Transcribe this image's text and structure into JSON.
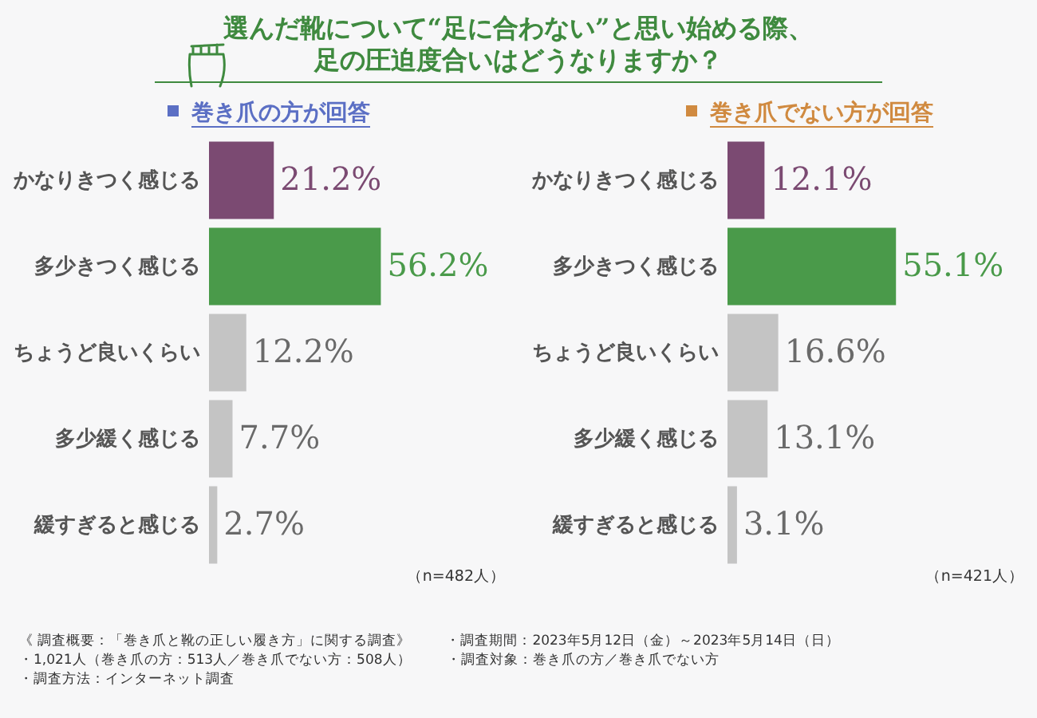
{
  "chart_data": [
    {
      "type": "bar",
      "orientation": "horizontal",
      "title": "選んだ靴について“足に合わない”と思い始める際、足の圧迫度合いはどうなりますか？",
      "subtitle": "巻き爪の方が回答",
      "categories": [
        "かなりきつく感じる",
        "多少きつく感じる",
        "ちょうど良いくらい",
        "多少緩く感じる",
        "緩すぎると感じる"
      ],
      "values": [
        21.2,
        56.2,
        12.2,
        7.7,
        2.7
      ],
      "colors": [
        "#7b4a72",
        "#4a9a4a",
        "#c4c4c4",
        "#c4c4c4",
        "#c4c4c4"
      ],
      "value_labels": [
        "21.2%",
        "56.2%",
        "12.2%",
        "7.7%",
        "2.7%"
      ],
      "tick_labels": false,
      "annotations": [
        "（n=482人）"
      ]
    },
    {
      "type": "bar",
      "orientation": "horizontal",
      "subtitle": "巻き爪でない方が回答",
      "categories": [
        "かなりきつく感じる",
        "多少きつく感じる",
        "ちょうど良いくらい",
        "多少緩く感じる",
        "緩すぎると感じる"
      ],
      "values": [
        12.1,
        55.1,
        16.6,
        13.1,
        3.1
      ],
      "colors": [
        "#7b4a72",
        "#4a9a4a",
        "#c4c4c4",
        "#c4c4c4",
        "#c4c4c4"
      ],
      "value_labels": [
        "12.1%",
        "55.1%",
        "16.6%",
        "13.1%",
        "3.1%"
      ],
      "tick_labels": false,
      "annotations": [
        "（n=421人）",
        "《 調査概要：「巻き爪と靴の正しい履き方」に関する調査》",
        "・調査期間：2023年5月12日（金）～2023年5月14日（日）",
        "・1,021人（巻き爪の方：513人／巻き爪でない方：508人）",
        "・調査対象：巻き爪の方／巻き爪でない方",
        "・調査方法：インターネット調査"
      ]
    }
  ]
}
